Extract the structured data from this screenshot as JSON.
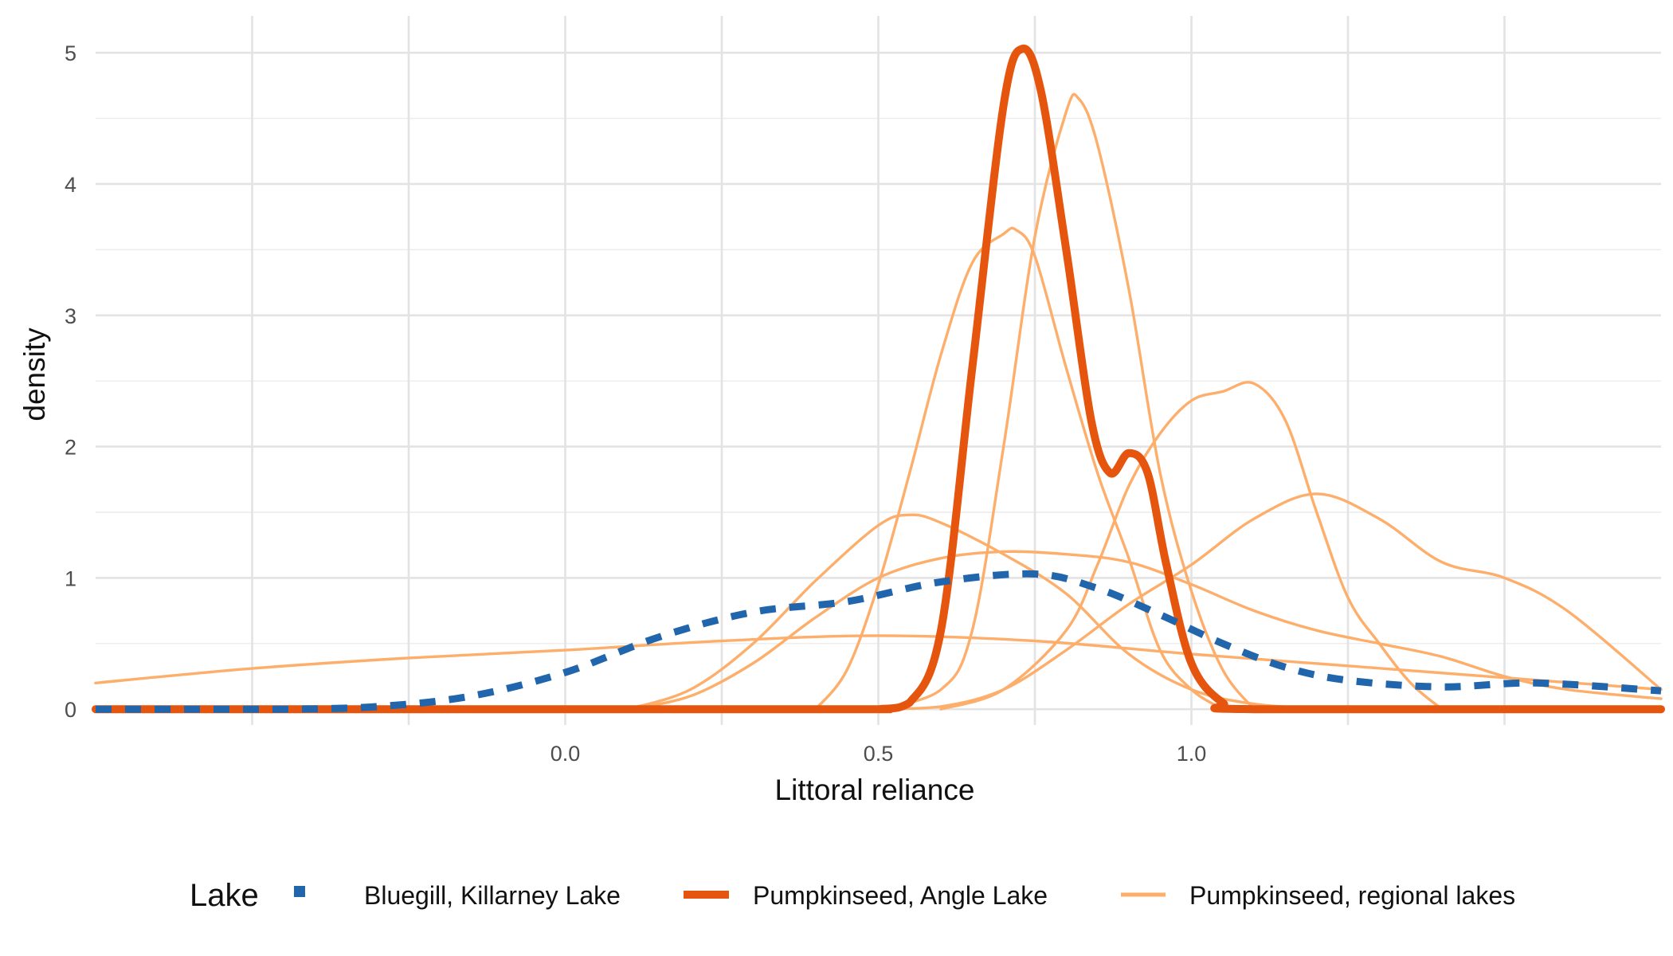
{
  "chart_data": {
    "type": "line",
    "title": "",
    "xlabel": "Littoral reliance",
    "ylabel": "density",
    "xlim": [
      -0.75,
      1.75
    ],
    "ylim": [
      -0.12,
      5.28
    ],
    "x_ticks": [
      0.0,
      0.5,
      1.0
    ],
    "x_tick_labels": [
      "0.0",
      "0.5",
      "1.0"
    ],
    "x_minor_gridlines": [
      -0.5,
      -0.25,
      0.25,
      0.75,
      1.25,
      1.5
    ],
    "y_ticks": [
      0,
      1,
      2,
      3,
      4,
      5
    ],
    "y_tick_labels": [
      "0",
      "1",
      "2",
      "3",
      "4",
      "5"
    ],
    "grid": true,
    "legend": {
      "title": "Lake",
      "position": "bottom",
      "entries": [
        {
          "label": "Bluegill, Killarney Lake",
          "color": "#2166ac",
          "style": "dashed"
        },
        {
          "label": "Pumpkinseed, Angle Lake",
          "color": "#e6550d",
          "style": "solid-thick"
        },
        {
          "label": "Pumpkinseed, regional lakes",
          "color": "#fdae6b",
          "style": "solid"
        }
      ]
    },
    "series": [
      {
        "legend_ref": 2,
        "x": [
          -0.75,
          -0.5,
          -0.25,
          0,
          0.25,
          0.5,
          0.75,
          1,
          1.25,
          1.5,
          1.75
        ],
        "y": [
          0.2,
          0.31,
          0.39,
          0.45,
          0.52,
          0.56,
          0.52,
          0.42,
          0.33,
          0.24,
          0.15
        ]
      },
      {
        "legend_ref": 2,
        "x": [
          0.1,
          0.2,
          0.3,
          0.4,
          0.5,
          0.55,
          0.6,
          0.7,
          0.8,
          0.9,
          1.0,
          1.1,
          1.2,
          1.3,
          1.4
        ],
        "y": [
          0.0,
          0.15,
          0.5,
          0.98,
          1.4,
          1.48,
          1.42,
          1.18,
          0.88,
          0.42,
          0.15,
          0.04,
          0.01,
          0.0,
          0.0
        ]
      },
      {
        "legend_ref": 2,
        "x": [
          0.1,
          0.2,
          0.3,
          0.4,
          0.5,
          0.6,
          0.7,
          0.8,
          0.9,
          1.0,
          1.1,
          1.2,
          1.3,
          1.4,
          1.5,
          1.6,
          1.75
        ],
        "y": [
          0.0,
          0.1,
          0.35,
          0.7,
          1.0,
          1.15,
          1.2,
          1.18,
          1.12,
          0.95,
          0.75,
          0.6,
          0.5,
          0.4,
          0.25,
          0.15,
          0.08
        ]
      },
      {
        "legend_ref": 2,
        "x": [
          0.4,
          0.45,
          0.5,
          0.55,
          0.6,
          0.65,
          0.7,
          0.72,
          0.75,
          0.8,
          0.85,
          0.9,
          0.95,
          1.0,
          1.05
        ],
        "y": [
          0.0,
          0.3,
          0.95,
          1.8,
          2.7,
          3.4,
          3.62,
          3.65,
          3.45,
          2.6,
          1.8,
          1.15,
          0.45,
          0.15,
          0.0
        ]
      },
      {
        "legend_ref": 2,
        "x": [
          0.5,
          0.6,
          0.65,
          0.7,
          0.75,
          0.8,
          0.82,
          0.85,
          0.9,
          0.95,
          1.0,
          1.05,
          1.1
        ],
        "y": [
          0.0,
          0.15,
          0.6,
          2.0,
          3.6,
          4.55,
          4.65,
          4.3,
          3.2,
          1.8,
          0.9,
          0.3,
          0.0
        ]
      },
      {
        "legend_ref": 2,
        "x": [
          0.6,
          0.7,
          0.8,
          0.85,
          0.9,
          0.95,
          1.0,
          1.05,
          1.1,
          1.15,
          1.2,
          1.25,
          1.3,
          1.35,
          1.4
        ],
        "y": [
          0.0,
          0.15,
          0.6,
          1.1,
          1.7,
          2.1,
          2.35,
          2.42,
          2.48,
          2.2,
          1.5,
          0.85,
          0.5,
          0.2,
          0.0
        ]
      },
      {
        "legend_ref": 2,
        "x": [
          0.5,
          0.6,
          0.7,
          0.8,
          0.9,
          1.0,
          1.1,
          1.2,
          1.3,
          1.4,
          1.5,
          1.6,
          1.75
        ],
        "y": [
          0.0,
          0.02,
          0.15,
          0.45,
          0.8,
          1.1,
          1.45,
          1.64,
          1.45,
          1.12,
          1.0,
          0.75,
          0.15
        ]
      },
      {
        "legend_ref": 1,
        "x": [
          -0.75,
          0.4,
          0.5,
          0.55,
          0.6,
          0.65,
          0.7,
          0.73,
          0.76,
          0.8,
          0.84,
          0.87,
          0.9,
          0.93,
          0.96,
          1.0,
          1.05,
          1.1,
          1.75
        ],
        "y": [
          0.0,
          0.0,
          0.0,
          0.05,
          0.6,
          2.6,
          4.6,
          5.03,
          4.7,
          3.5,
          2.2,
          1.8,
          1.95,
          1.8,
          1.1,
          0.35,
          0.05,
          0.0,
          0.0
        ]
      },
      {
        "legend_ref": 0,
        "x": [
          -0.75,
          -0.6,
          -0.45,
          -0.3,
          -0.15,
          0,
          0.15,
          0.3,
          0.45,
          0.6,
          0.75,
          0.85,
          0.95,
          1.05,
          1.15,
          1.25,
          1.4,
          1.55,
          1.75
        ],
        "y": [
          0.0,
          0.0,
          0.0,
          0.02,
          0.1,
          0.28,
          0.55,
          0.74,
          0.82,
          0.97,
          1.03,
          0.92,
          0.72,
          0.5,
          0.32,
          0.22,
          0.17,
          0.2,
          0.14
        ]
      }
    ]
  }
}
